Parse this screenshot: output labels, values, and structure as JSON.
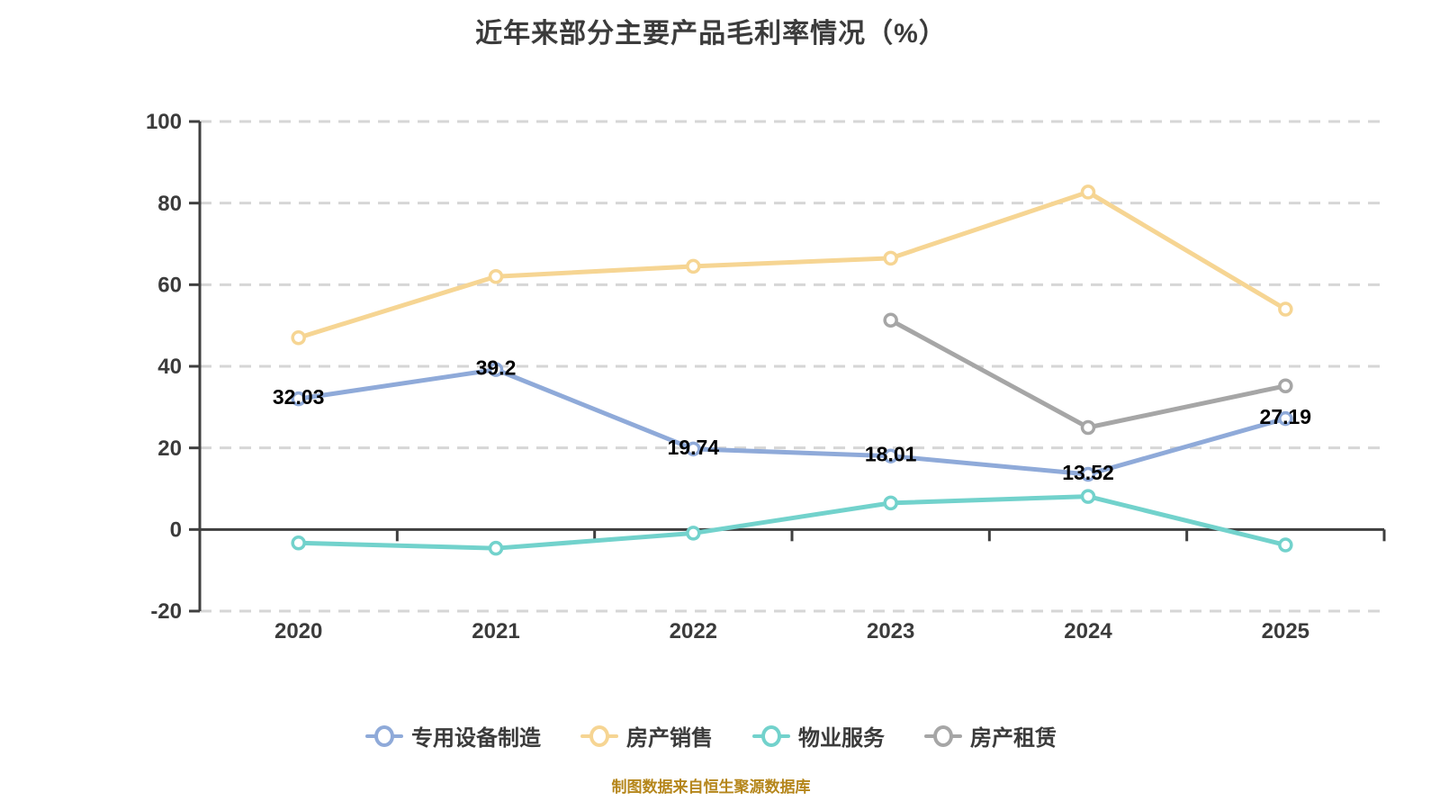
{
  "title": "近年来部分主要产品毛利率情况（%）",
  "footer": "制图数据来自恒生聚源数据库",
  "colors": {
    "axis": "#3f3f3f",
    "gridline": "#d6d6d6",
    "tick_label": "#3b3b3b",
    "data_label": "#000000",
    "footer_text": "#b5861b",
    "marker_fill": "#ffffff"
  },
  "chart_data": {
    "type": "line",
    "title": "近年来部分主要产品毛利率情况（%）",
    "x": [
      "2020",
      "2021",
      "2022",
      "2023",
      "2024",
      "2025"
    ],
    "yticks": [
      100,
      80,
      60,
      40,
      20,
      0,
      -20
    ],
    "ylim": [
      -20,
      100
    ],
    "grid": "horizontal dashed",
    "legend_position": "bottom",
    "series": [
      {
        "name": "专用设备制造",
        "color": "#8faad9",
        "values": [
          32.03,
          39.2,
          19.74,
          18.01,
          13.52,
          27.19
        ],
        "labels": [
          "32.03",
          "39.2",
          "19.74",
          "18.01",
          "13.52",
          "27.19"
        ]
      },
      {
        "name": "房产销售",
        "color": "#f6d593",
        "values": [
          47,
          62,
          64.5,
          66.5,
          82.7,
          54
        ],
        "labels": null
      },
      {
        "name": "物业服务",
        "color": "#72d2cc",
        "values": [
          -3.3,
          -4.6,
          -0.9,
          6.5,
          8.1,
          -3.8
        ],
        "labels": null
      },
      {
        "name": "房产租赁",
        "color": "#a6a6a6",
        "values": [
          null,
          null,
          null,
          51.3,
          25,
          35.2
        ],
        "labels": null
      }
    ]
  }
}
